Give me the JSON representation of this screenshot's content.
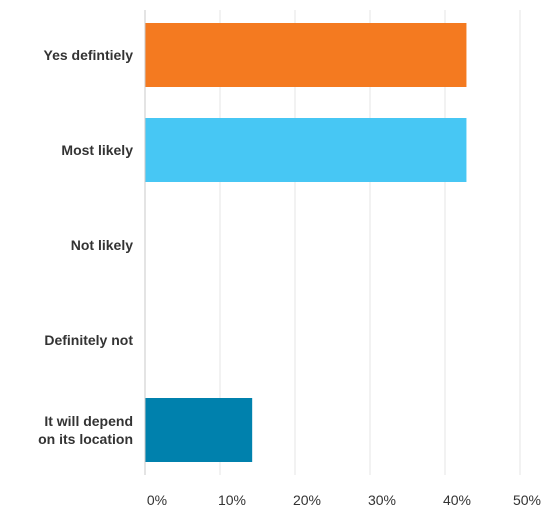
{
  "chart_data": {
    "type": "bar",
    "orientation": "horizontal",
    "categories": [
      [
        "Yes defintiely"
      ],
      [
        "Most likely"
      ],
      [
        "Not likely"
      ],
      [
        "Definitely not"
      ],
      [
        "It will depend",
        "on its location"
      ]
    ],
    "values": [
      42.86,
      42.86,
      0,
      0,
      14.29
    ],
    "colors": [
      "#f47a20",
      "#47c7f4",
      "#7f7f7f",
      "#c7c7c7",
      "#0081ad"
    ],
    "xlim": [
      0,
      50
    ],
    "x_ticks": [
      0,
      10,
      20,
      30,
      40,
      50
    ],
    "x_tick_labels": [
      "0%",
      "10%",
      "20%",
      "30%",
      "40%",
      "50%"
    ],
    "grid": true,
    "legend": "none",
    "title": "",
    "xlabel": "",
    "ylabel": ""
  }
}
